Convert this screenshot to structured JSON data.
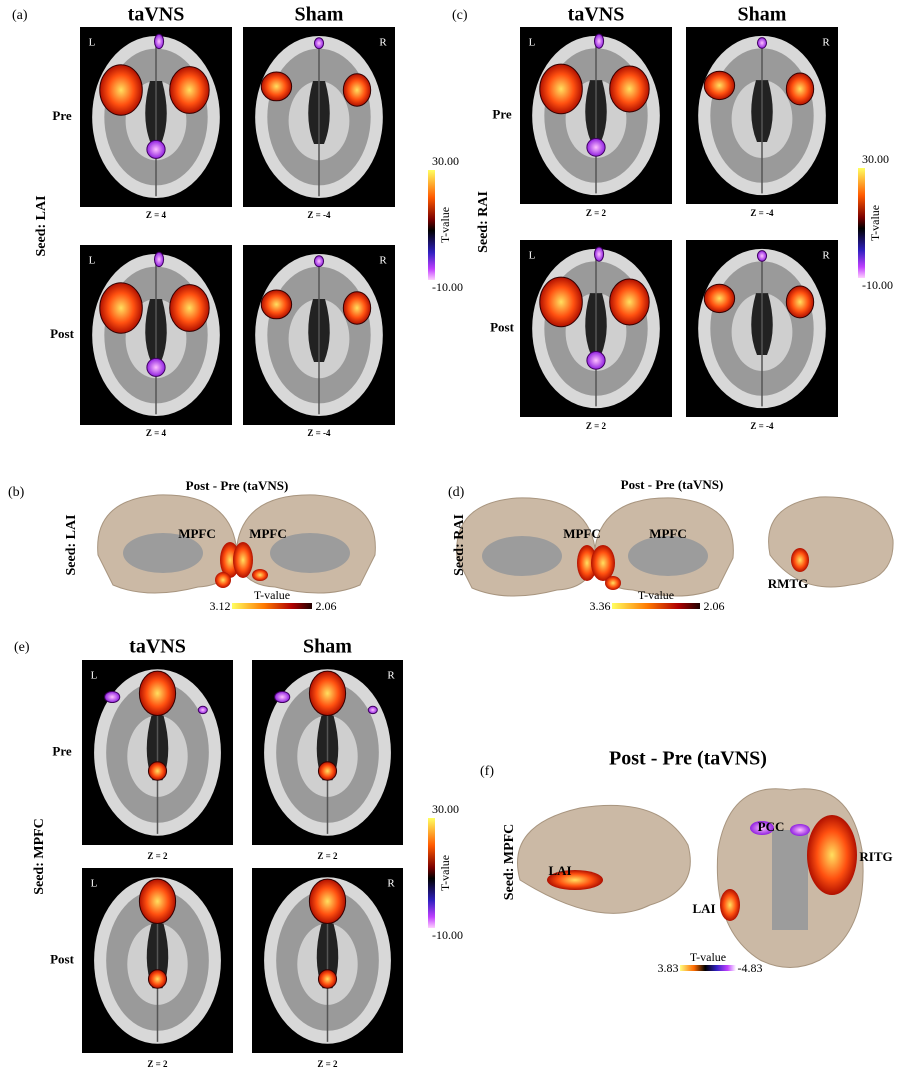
{
  "panels": {
    "a": {
      "label": "(a)",
      "columns": [
        "taVNS",
        "Sham"
      ],
      "rows": [
        "Pre",
        "Post"
      ],
      "seed": "Seed: LAI",
      "markers": [
        "L",
        "R",
        "L",
        "R"
      ],
      "slices": [
        "Z = 4",
        "Z = -4",
        "Z = 4",
        "Z = -4"
      ],
      "colorbar": {
        "max": "30.00",
        "title": "T-value",
        "min": "-10.00"
      }
    },
    "b": {
      "label": "(b)",
      "title": "Post - Pre (taVNS)",
      "seed": "Seed: LAI",
      "regions": [
        "MPFC",
        "MPFC"
      ],
      "colorbar": {
        "max": "3.12",
        "title": "T-value",
        "min": "2.06"
      }
    },
    "c": {
      "label": "(c)",
      "columns": [
        "taVNS",
        "Sham"
      ],
      "rows": [
        "Pre",
        "Post"
      ],
      "seed": "Seed: RAI",
      "markers": [
        "L",
        "R",
        "L",
        "R"
      ],
      "slices": [
        "Z = 2",
        "Z = -4",
        "Z = 2",
        "Z = -4"
      ],
      "colorbar": {
        "max": "30.00",
        "title": "T-value",
        "min": "-10.00"
      }
    },
    "d": {
      "label": "(d)",
      "title": "Post - Pre (taVNS)",
      "seed": "Seed: RAI",
      "regions": [
        "MPFC",
        "MPFC",
        "RMTG"
      ],
      "colorbar": {
        "max": "3.36",
        "title": "T-value",
        "min": "2.06"
      }
    },
    "e": {
      "label": "(e)",
      "columns": [
        "taVNS",
        "Sham"
      ],
      "rows": [
        "Pre",
        "Post"
      ],
      "seed": "Seed: MPFC",
      "markers": [
        "L",
        "R",
        "L",
        "R"
      ],
      "slices": [
        "Z = 2",
        "Z = 2",
        "Z = 2",
        "Z = 2"
      ],
      "colorbar": {
        "max": "30.00",
        "title": "T-value",
        "min": "-10.00"
      }
    },
    "f": {
      "label": "(f)",
      "title": "Post - Pre (taVNS)",
      "seed": "Seed: MPFC",
      "regions": [
        "LAI",
        "LAI",
        "PCC",
        "RITG"
      ],
      "colorbar": {
        "max": "3.83",
        "title": "T-value",
        "min": "-4.83"
      }
    }
  }
}
